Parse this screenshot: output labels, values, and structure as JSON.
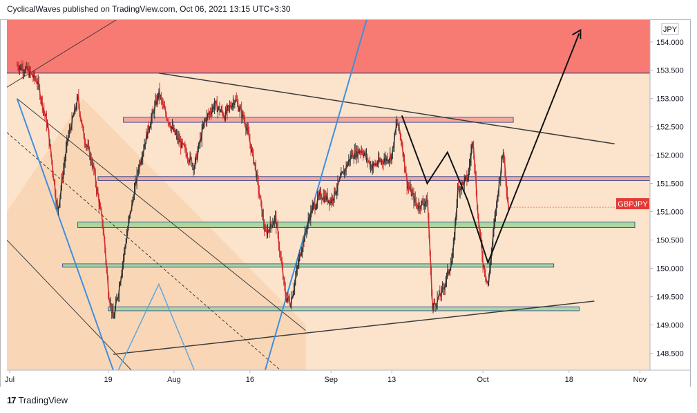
{
  "header": {
    "publisher_line": "CyclicalWaves published on TradingView.com, Oct 06, 2021 13:15 UTC+3:30"
  },
  "footer": {
    "brand": "TradingView",
    "logo_glyph": "17"
  },
  "chart_data": {
    "type": "candlestick",
    "symbol_label": "GBPJPY",
    "currency": "JPY",
    "y_axis_ticks": [
      "154.000",
      "153.500",
      "153.000",
      "152.500",
      "152.000",
      "151.500",
      "151.000",
      "150.500",
      "150.000",
      "149.500",
      "149.000",
      "148.500"
    ],
    "ylim": [
      148.2,
      154.4
    ],
    "x_axis_ticks": [
      {
        "label": "Jul",
        "date": "2021-07-01"
      },
      {
        "label": "19",
        "date": "2021-07-19"
      },
      {
        "label": "Aug",
        "date": "2021-08-01"
      },
      {
        "label": "16",
        "date": "2021-08-16"
      },
      {
        "label": "Sep",
        "date": "2021-09-01"
      },
      {
        "label": "13",
        "date": "2021-09-13"
      },
      {
        "label": "Oct",
        "date": "2021-10-01"
      },
      {
        "label": "18",
        "date": "2021-10-18"
      },
      {
        "label": "Nov",
        "date": "2021-11-01"
      }
    ],
    "last_price": 151.08,
    "price_path": [
      [
        "2021-07-01",
        153.6
      ],
      [
        "2021-07-03",
        153.5
      ],
      [
        "2021-07-05",
        153.3
      ],
      [
        "2021-07-07",
        152.5
      ],
      [
        "2021-07-09",
        151.0
      ],
      [
        "2021-07-11",
        152.3
      ],
      [
        "2021-07-13",
        153.0
      ],
      [
        "2021-07-14",
        152.4
      ],
      [
        "2021-07-16",
        151.8
      ],
      [
        "2021-07-18",
        150.7
      ],
      [
        "2021-07-19",
        149.6
      ],
      [
        "2021-07-20",
        149.1
      ],
      [
        "2021-07-21",
        149.6
      ],
      [
        "2021-07-23",
        150.8
      ],
      [
        "2021-07-25",
        151.8
      ],
      [
        "2021-07-27",
        152.5
      ],
      [
        "2021-07-29",
        153.1
      ],
      [
        "2021-07-30",
        152.8
      ],
      [
        "2021-08-01",
        152.4
      ],
      [
        "2021-08-03",
        152.1
      ],
      [
        "2021-08-05",
        151.8
      ],
      [
        "2021-08-07",
        152.6
      ],
      [
        "2021-08-09",
        152.9
      ],
      [
        "2021-08-11",
        152.7
      ],
      [
        "2021-08-13",
        153.0
      ],
      [
        "2021-08-15",
        152.6
      ],
      [
        "2021-08-17",
        151.8
      ],
      [
        "2021-08-19",
        150.6
      ],
      [
        "2021-08-21",
        150.9
      ],
      [
        "2021-08-23",
        149.5
      ],
      [
        "2021-08-24",
        149.4
      ],
      [
        "2021-08-26",
        150.3
      ],
      [
        "2021-08-28",
        151.0
      ],
      [
        "2021-08-30",
        151.3
      ],
      [
        "2021-09-01",
        151.2
      ],
      [
        "2021-09-03",
        151.6
      ],
      [
        "2021-09-05",
        152.0
      ],
      [
        "2021-09-07",
        152.1
      ],
      [
        "2021-09-09",
        151.8
      ],
      [
        "2021-09-11",
        151.9
      ],
      [
        "2021-09-13",
        152.0
      ],
      [
        "2021-09-14",
        152.6
      ],
      [
        "2021-09-15",
        152.2
      ],
      [
        "2021-09-16",
        151.5
      ],
      [
        "2021-09-18",
        151.1
      ],
      [
        "2021-09-20",
        151.2
      ],
      [
        "2021-09-21",
        149.3
      ],
      [
        "2021-09-23",
        149.6
      ],
      [
        "2021-09-25",
        150.2
      ],
      [
        "2021-09-26",
        151.4
      ],
      [
        "2021-09-28",
        151.6
      ],
      [
        "2021-09-29",
        152.3
      ],
      [
        "2021-09-30",
        150.9
      ],
      [
        "2021-10-01",
        150.1
      ],
      [
        "2021-10-02",
        149.7
      ],
      [
        "2021-10-03",
        150.6
      ],
      [
        "2021-10-04",
        151.4
      ],
      [
        "2021-10-05",
        152.1
      ],
      [
        "2021-10-06",
        151.08
      ]
    ],
    "zones": [
      {
        "kind": "red",
        "color": "#f87b73",
        "y1": 153.45,
        "y2": 154.4
      },
      {
        "kind": "red-line",
        "color": "#f6a39b",
        "y1": 152.58,
        "y2": 152.67
      },
      {
        "kind": "red-line",
        "color": "#f6a39b",
        "y1": 151.55,
        "y2": 151.62
      },
      {
        "kind": "green",
        "color": "#a8d5a0",
        "y1": 150.72,
        "y2": 150.82
      },
      {
        "kind": "green",
        "color": "#a8d5a0",
        "y1": 150.02,
        "y2": 150.08
      },
      {
        "kind": "green",
        "color": "#a8d5a0",
        "y1": 149.25,
        "y2": 149.32
      }
    ],
    "colors": {
      "chart_bg": "#fbe3cc",
      "chart_bg_dark": "#f9d7b6",
      "candle_up": "#333333",
      "candle_down": "#d32f2f",
      "price_label": "#e53935",
      "trendline": "#3b3b3b",
      "blue_line": "#3d8fe0",
      "light_blue": "#5ba6de",
      "zone_border": "#1f3b8a"
    },
    "grid": false,
    "legend": "none"
  }
}
